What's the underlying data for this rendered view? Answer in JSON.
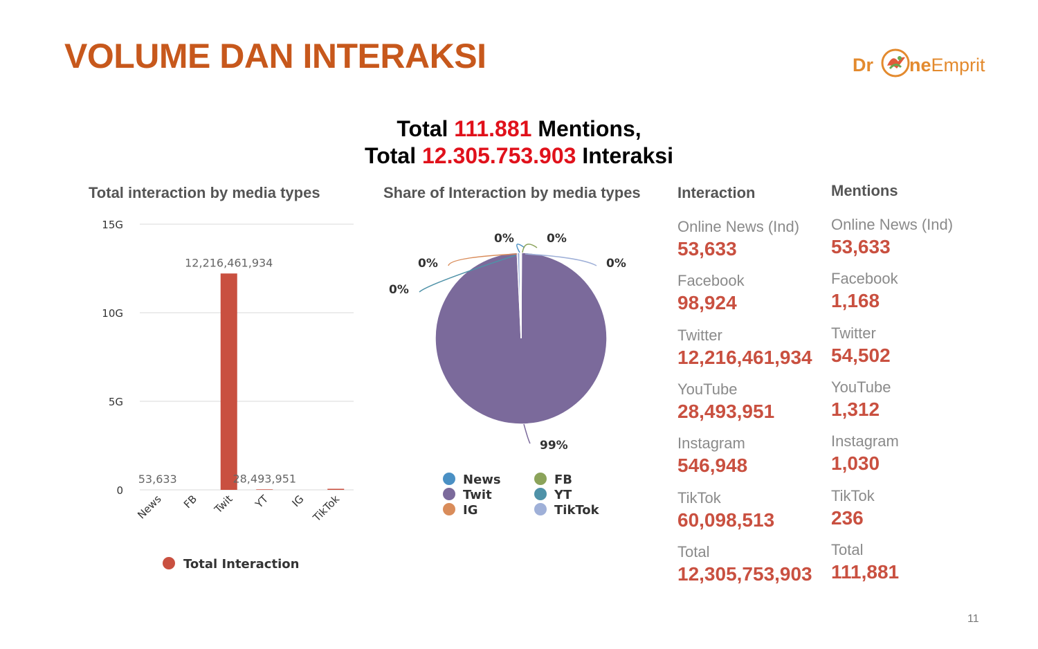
{
  "slide": {
    "title": "VOLUME DAN INTERAKSI",
    "page_number": "11"
  },
  "logo": {
    "text_prefix": "Dr",
    "text_mid": "ne",
    "text_suffix": "Emprit",
    "color": "#e38a2e"
  },
  "headline": {
    "line1_pre": "Total ",
    "line1_value": "111.881",
    "line1_post": " Mentions,",
    "line2_pre": "Total ",
    "line2_value": "12.305.753.903",
    "line2_post": " Interaksi"
  },
  "chart_data": [
    {
      "type": "bar",
      "title": "Total interaction by media types",
      "categories": [
        "News",
        "FB",
        "Twit",
        "YT",
        "IG",
        "TikTok"
      ],
      "series": [
        {
          "name": "Total Interaction",
          "color": "#c95040",
          "values": [
            53633,
            98924,
            12216461934,
            28493951,
            546948,
            60098513
          ]
        }
      ],
      "y_ticks": [
        {
          "value": 0,
          "label": "0"
        },
        {
          "value": 5000000000,
          "label": "5G"
        },
        {
          "value": 10000000000,
          "label": "10G"
        },
        {
          "value": 15000000000,
          "label": "15G"
        }
      ],
      "ylim": [
        0,
        15000000000
      ],
      "data_labels": [
        {
          "index": 0,
          "text": "53,633"
        },
        {
          "index": 2,
          "text": "12,216,461,934"
        },
        {
          "index": 3,
          "text": "28,493,951"
        }
      ],
      "grid": true,
      "legend": "bottom"
    },
    {
      "type": "pie",
      "title": "Share of Interaction by media types",
      "slices": [
        {
          "label": "News",
          "value": 53633,
          "pct_label": "0%",
          "color": "#4a90c4"
        },
        {
          "label": "FB",
          "value": 98924,
          "pct_label": "0%",
          "color": "#8ba35a"
        },
        {
          "label": "Twit",
          "value": 12216461934,
          "pct_label": "99%",
          "color": "#7b6a9b"
        },
        {
          "label": "YT",
          "value": 28493951,
          "pct_label": "0%",
          "color": "#4f92a8"
        },
        {
          "label": "IG",
          "value": 546948,
          "pct_label": "0%",
          "color": "#d98c5a"
        },
        {
          "label": "TikTok",
          "value": 60098513,
          "pct_label": "0%",
          "color": "#9fb0d8"
        }
      ],
      "legend_order": [
        "News",
        "FB",
        "Twit",
        "YT",
        "IG",
        "TikTok"
      ],
      "legend": "bottom"
    }
  ],
  "interaction": {
    "title": "Interaction",
    "items": [
      {
        "label": "Online News (Ind)",
        "value": "53,633"
      },
      {
        "label": "Facebook",
        "value": "98,924"
      },
      {
        "label": "Twitter",
        "value": "12,216,461,934"
      },
      {
        "label": "YouTube",
        "value": "28,493,951"
      },
      {
        "label": "Instagram",
        "value": "546,948"
      },
      {
        "label": "TikTok",
        "value": "60,098,513"
      },
      {
        "label": "Total",
        "value": "12,305,753,903"
      }
    ]
  },
  "mentions": {
    "title": "Mentions",
    "items": [
      {
        "label": "Online News (Ind)",
        "value": "53,633"
      },
      {
        "label": "Facebook",
        "value": "1,168"
      },
      {
        "label": "Twitter",
        "value": "54,502"
      },
      {
        "label": "YouTube",
        "value": "1,312"
      },
      {
        "label": "Instagram",
        "value": "1,030"
      },
      {
        "label": "TikTok",
        "value": "236"
      },
      {
        "label": "Total",
        "value": "111,881"
      }
    ]
  }
}
